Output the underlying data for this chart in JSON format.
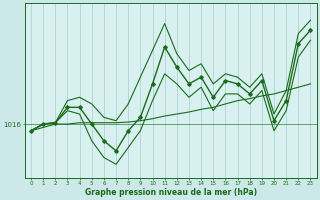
{
  "xlabel": "Graphe pression niveau de la mer (hPa)",
  "ylabel_label": "1016",
  "bg_color": "#cde8e8",
  "plot_bg_color": "#d8f0f0",
  "line_color": "#1a6b1a",
  "vline_color": "#aacece",
  "x_ticks": [
    0,
    1,
    2,
    3,
    4,
    5,
    6,
    7,
    8,
    9,
    10,
    11,
    12,
    13,
    14,
    15,
    16,
    17,
    18,
    19,
    20,
    21,
    22,
    23
  ],
  "ylim": [
    1008,
    1034
  ],
  "xlim": [
    -0.5,
    23.5
  ],
  "reference_y": 1016,
  "series_main": [
    1015.0,
    1016.0,
    1016.2,
    1018.5,
    1018.5,
    1016.0,
    1013.5,
    1012.0,
    1015.0,
    1017.0,
    1022.0,
    1027.5,
    1024.5,
    1022.0,
    1023.0,
    1020.0,
    1022.5,
    1022.0,
    1020.5,
    1022.5,
    1016.5,
    1019.5,
    1028.0,
    1030.0
  ],
  "series_upper": [
    1015.0,
    1016.0,
    1016.2,
    1019.5,
    1020.0,
    1019.0,
    1017.0,
    1016.5,
    1019.0,
    1023.0,
    1027.0,
    1031.0,
    1026.5,
    1024.0,
    1025.0,
    1022.0,
    1023.5,
    1023.0,
    1021.5,
    1023.5,
    1017.5,
    1021.0,
    1029.5,
    1031.5
  ],
  "series_lower": [
    1015.0,
    1016.0,
    1016.2,
    1018.0,
    1017.5,
    1013.5,
    1011.0,
    1010.0,
    1012.5,
    1015.0,
    1019.5,
    1023.5,
    1022.0,
    1020.0,
    1021.5,
    1018.0,
    1020.5,
    1020.5,
    1019.0,
    1021.0,
    1015.0,
    1018.0,
    1026.0,
    1028.5
  ],
  "series_trend": [
    1015.0,
    1015.5,
    1016.0,
    1016.0,
    1016.2,
    1016.2,
    1016.2,
    1016.2,
    1016.3,
    1016.5,
    1016.8,
    1017.2,
    1017.5,
    1017.8,
    1018.2,
    1018.5,
    1019.0,
    1019.5,
    1019.8,
    1020.2,
    1020.5,
    1021.0,
    1021.5,
    1022.0
  ]
}
